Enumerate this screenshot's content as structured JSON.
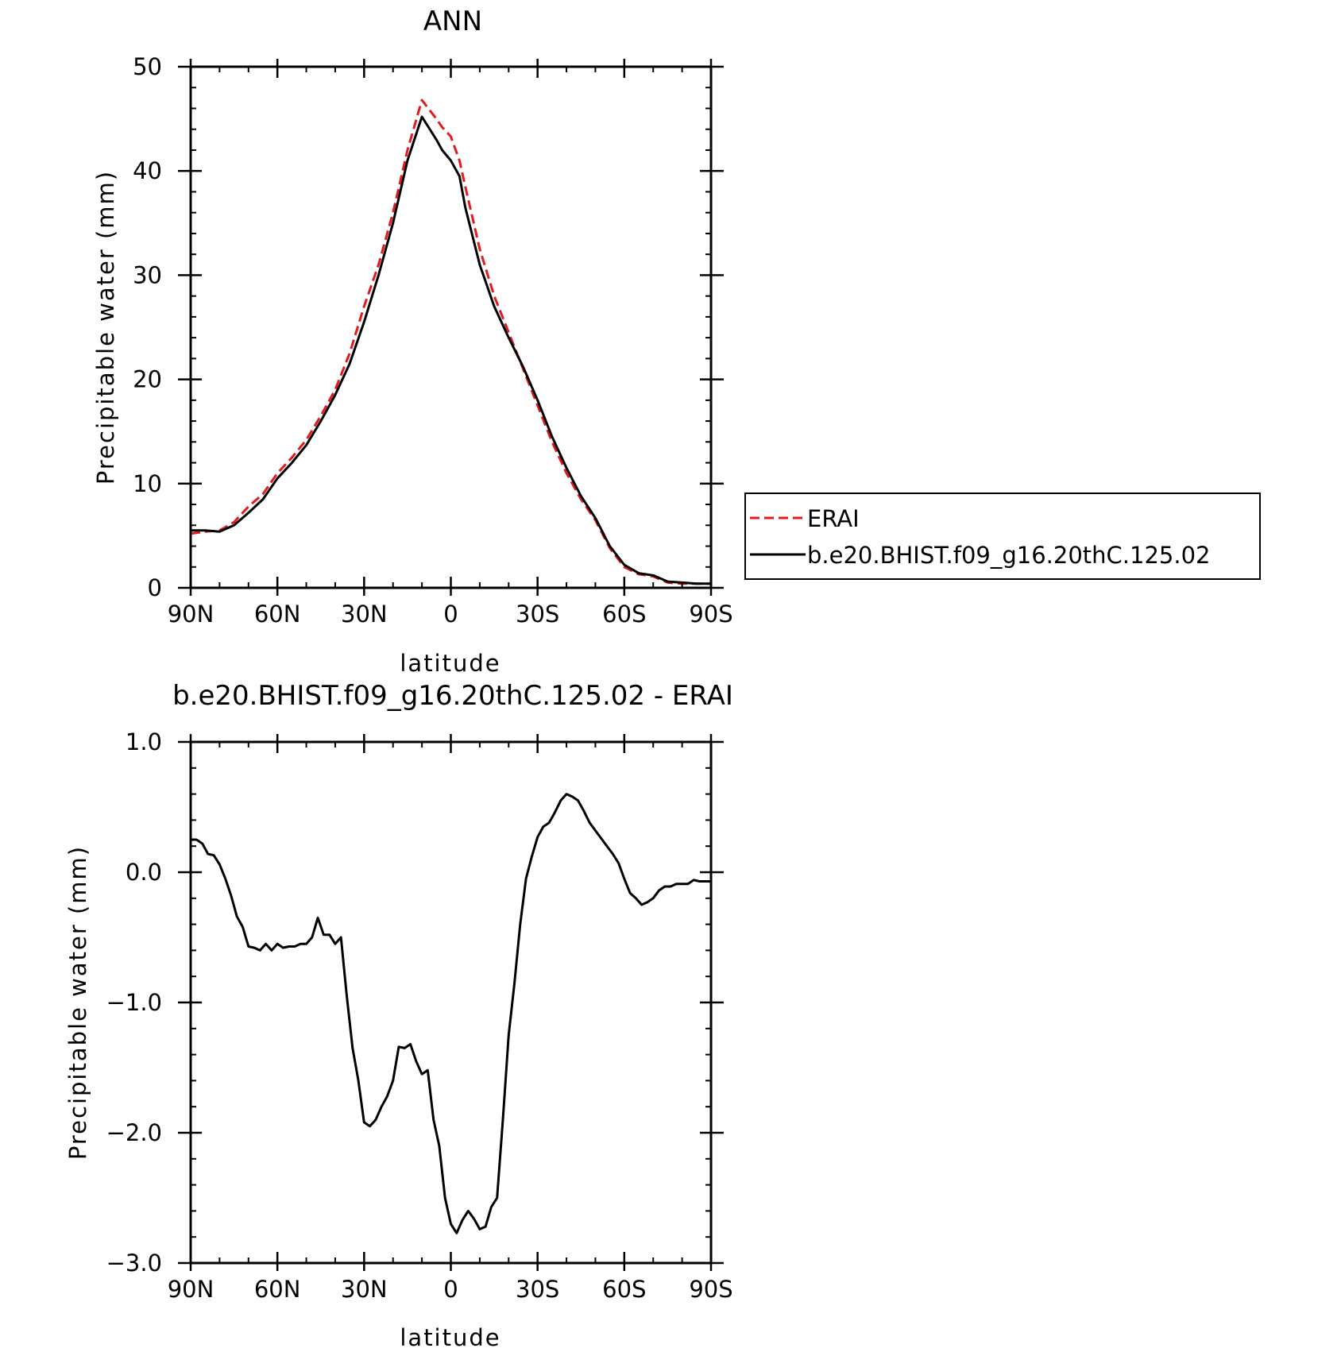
{
  "colors": {
    "erai": "#e41a1c",
    "model": "#000000",
    "axis": "#000000"
  },
  "chart_data": [
    {
      "type": "line",
      "title": "ANN",
      "xlabel": "latitude",
      "ylabel": "Precipitable water (mm)",
      "xlim": [
        90,
        -90
      ],
      "ylim": [
        0,
        50
      ],
      "xticks": [
        90,
        60,
        30,
        0,
        -30,
        -60,
        -90
      ],
      "xtick_labels": [
        "90N",
        "60N",
        "30N",
        "0",
        "30S",
        "60S",
        "90S"
      ],
      "yticks": [
        0,
        10,
        20,
        30,
        40,
        50
      ],
      "ytick_labels": [
        "0",
        "10",
        "20",
        "30",
        "40",
        "50"
      ],
      "grid": false,
      "legend": "right",
      "series": [
        {
          "name": "ERAI",
          "style": "dashed",
          "color": "#e41a1c",
          "x": [
            90,
            85,
            80,
            75,
            70,
            65,
            60,
            55,
            50,
            45,
            40,
            35,
            30,
            25,
            20,
            15,
            10,
            5,
            3,
            0,
            -3,
            -5,
            -10,
            -15,
            -20,
            -25,
            -30,
            -35,
            -40,
            -45,
            -50,
            -55,
            -60,
            -65,
            -70,
            -75,
            -80,
            -85,
            -90
          ],
          "y": [
            5.2,
            5.4,
            5.5,
            6.3,
            7.8,
            9.0,
            11.0,
            12.5,
            14.2,
            16.5,
            19.0,
            22.5,
            27.0,
            31.0,
            36.0,
            42.0,
            46.8,
            45.0,
            44.2,
            43.3,
            41.0,
            38.5,
            32.5,
            28.0,
            24.5,
            21.0,
            17.5,
            14.0,
            11.0,
            8.5,
            6.5,
            3.8,
            2.0,
            1.3,
            1.1,
            0.5,
            0.4,
            0.4,
            0.4
          ]
        },
        {
          "name": "b.e20.BHIST.f09_g16.20thC.125.02",
          "style": "solid",
          "color": "#000000",
          "x": [
            90,
            85,
            80,
            75,
            70,
            65,
            60,
            55,
            50,
            45,
            40,
            35,
            30,
            25,
            20,
            15,
            10,
            5,
            3,
            0,
            -3,
            -5,
            -10,
            -15,
            -20,
            -25,
            -30,
            -35,
            -40,
            -45,
            -50,
            -55,
            -60,
            -65,
            -70,
            -75,
            -80,
            -85,
            -90
          ],
          "y": [
            5.5,
            5.5,
            5.4,
            6.0,
            7.2,
            8.5,
            10.5,
            12.0,
            13.7,
            16.0,
            18.5,
            21.5,
            25.5,
            30.0,
            35.0,
            41.0,
            45.2,
            43.0,
            42.0,
            41.0,
            39.5,
            36.5,
            31.0,
            27.0,
            24.0,
            21.2,
            18.0,
            14.5,
            11.5,
            8.8,
            6.7,
            4.0,
            2.2,
            1.4,
            1.2,
            0.6,
            0.5,
            0.4,
            0.4
          ]
        }
      ]
    },
    {
      "type": "line",
      "title": "b.e20.BHIST.f09_g16.20thC.125.02 - ERAI",
      "xlabel": "latitude",
      "ylabel": "Precipitable water (mm)",
      "xlim": [
        90,
        -90
      ],
      "ylim": [
        -3.0,
        1.0
      ],
      "xticks": [
        90,
        60,
        30,
        0,
        -30,
        -60,
        -90
      ],
      "xtick_labels": [
        "90N",
        "60N",
        "30N",
        "0",
        "30S",
        "60S",
        "90S"
      ],
      "yticks": [
        1.0,
        0.0,
        -1.0,
        -2.0,
        -3.0
      ],
      "ytick_labels": [
        "1.0",
        "0.0",
        "−1.0",
        "−2.0",
        "−3.0"
      ],
      "grid": false,
      "series": [
        {
          "style": "solid",
          "color": "#000000",
          "x": [
            90,
            88,
            86,
            84,
            82,
            80,
            78,
            76,
            74,
            72,
            70,
            68,
            66,
            64,
            62,
            60,
            58,
            56,
            54,
            52,
            50,
            48,
            46,
            44,
            42,
            40,
            38,
            36,
            34,
            32,
            30,
            28,
            26,
            24,
            22,
            20,
            18,
            16,
            14,
            12,
            10,
            8,
            6,
            4,
            2,
            0,
            -2,
            -4,
            -6,
            -8,
            -10,
            -12,
            -14,
            -16,
            -18,
            -20,
            -22,
            -24,
            -26,
            -28,
            -30,
            -32,
            -34,
            -36,
            -38,
            -40,
            -42,
            -44,
            -46,
            -48,
            -50,
            -52,
            -54,
            -56,
            -58,
            -60,
            -62,
            -64,
            -66,
            -68,
            -70,
            -72,
            -74,
            -76,
            -78,
            -80,
            -82,
            -84,
            -86,
            -88,
            -90
          ],
          "y": [
            0.25,
            0.25,
            0.22,
            0.14,
            0.13,
            0.06,
            -0.05,
            -0.18,
            -0.34,
            -0.42,
            -0.57,
            -0.58,
            -0.6,
            -0.55,
            -0.6,
            -0.55,
            -0.58,
            -0.57,
            -0.57,
            -0.55,
            -0.55,
            -0.5,
            -0.35,
            -0.48,
            -0.48,
            -0.55,
            -0.5,
            -0.95,
            -1.35,
            -1.6,
            -1.92,
            -1.95,
            -1.9,
            -1.8,
            -1.72,
            -1.6,
            -1.34,
            -1.35,
            -1.32,
            -1.45,
            -1.55,
            -1.52,
            -1.9,
            -2.1,
            -2.5,
            -2.7,
            -2.77,
            -2.67,
            -2.6,
            -2.66,
            -2.74,
            -2.72,
            -2.57,
            -2.5,
            -1.9,
            -1.25,
            -0.85,
            -0.4,
            -0.05,
            0.12,
            0.27,
            0.35,
            0.38,
            0.46,
            0.55,
            0.6,
            0.58,
            0.55,
            0.47,
            0.38,
            0.32,
            0.26,
            0.2,
            0.14,
            0.07,
            -0.05,
            -0.16,
            -0.2,
            -0.25,
            -0.23,
            -0.2,
            -0.14,
            -0.11,
            -0.11,
            -0.09,
            -0.09,
            -0.09,
            -0.06,
            -0.07,
            -0.07,
            -0.07
          ]
        }
      ]
    }
  ]
}
